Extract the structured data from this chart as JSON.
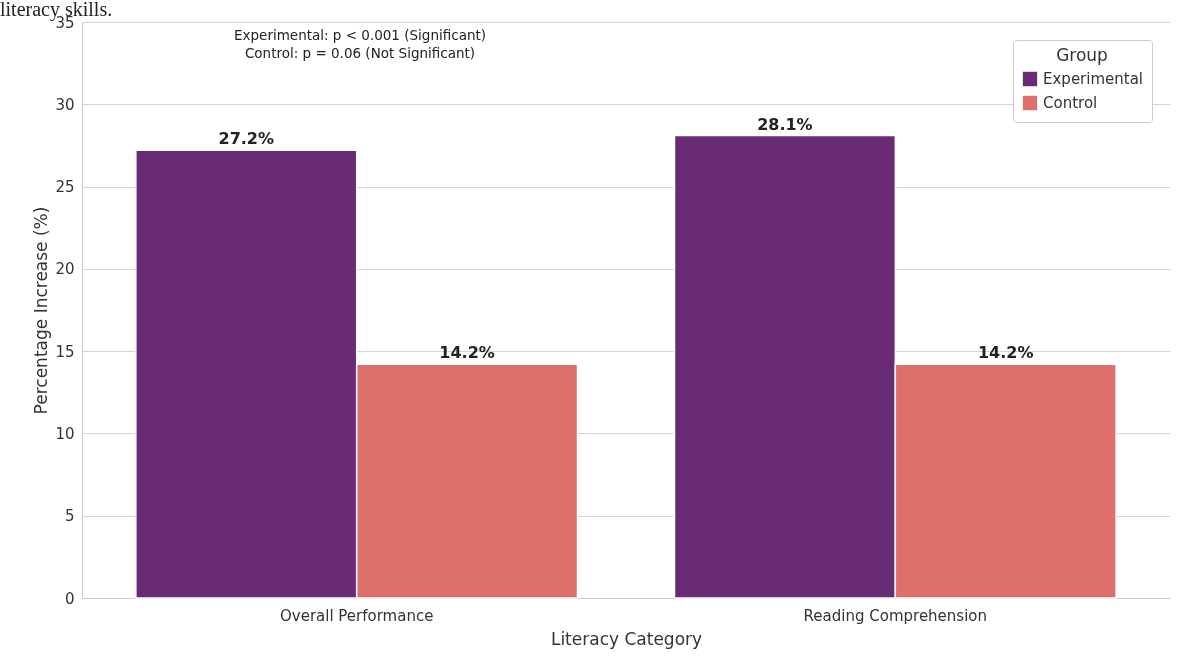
{
  "chart_data": {
    "type": "bar",
    "xlabel": "Literacy Category",
    "ylabel": "Percentage Increase (%)",
    "legend_title": "Group",
    "categories": [
      "Overall Performance",
      "Reading Comprehension"
    ],
    "series": [
      {
        "name": "Experimental",
        "color": "#692b73",
        "values": [
          27.2,
          28.1
        ],
        "value_labels": [
          "27.2%",
          "28.1%"
        ]
      },
      {
        "name": "Control",
        "color": "#de706b",
        "values": [
          14.2,
          14.2
        ],
        "value_labels": [
          "14.2%",
          "14.2%"
        ]
      }
    ],
    "ylim": [
      0,
      35
    ],
    "yticks": [
      0,
      5,
      10,
      15,
      20,
      25,
      30,
      35
    ],
    "grid": "y",
    "legend": "top right",
    "annotations": [
      "literacy skills.",
      "Experimental: p < 0.001 (Significant)",
      "Control: p = 0.06 (Not Significant)"
    ]
  }
}
